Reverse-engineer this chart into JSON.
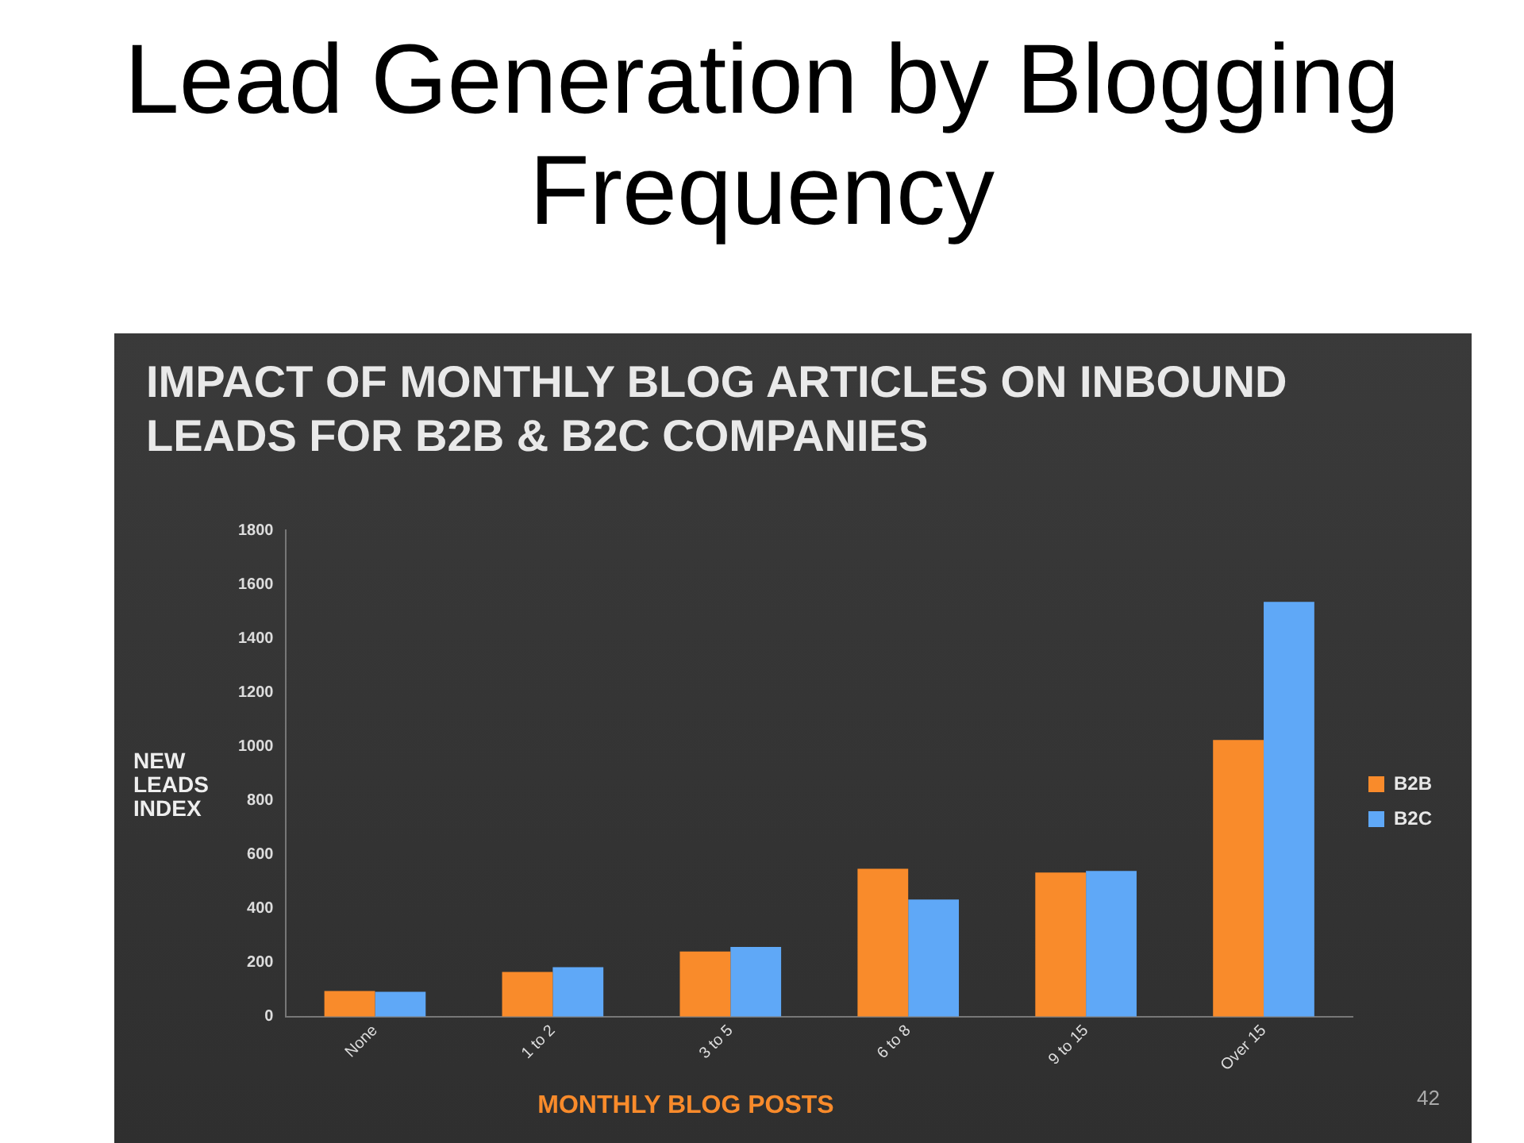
{
  "chart_data": {
    "type": "bar",
    "title": "Lead Generation by Blogging Frequency",
    "subtitle": "IMPACT OF MONTHLY BLOG ARTICLES ON INBOUND LEADS FOR B2B & B2C COMPANIES",
    "xlabel": "MONTHLY BLOG POSTS",
    "ylabel": "NEW LEADS INDEX",
    "categories": [
      "None",
      "1 to 2",
      "3 to 5",
      "6 to 8",
      "9 to 15",
      "Over 15"
    ],
    "series": [
      {
        "name": "B2B",
        "color": "#f98b2b",
        "values": [
          95,
          165,
          241,
          547,
          533,
          1024
        ]
      },
      {
        "name": "B2C",
        "color": "#5fa8f7",
        "values": [
          92,
          183,
          258,
          433,
          539,
          1535
        ]
      }
    ],
    "ylim": [
      0,
      1800
    ],
    "yticks": [
      0,
      200,
      400,
      600,
      800,
      1000,
      1200,
      1400,
      1600,
      1800
    ],
    "grid": false,
    "legend": "right",
    "annotations": [
      "42"
    ]
  }
}
